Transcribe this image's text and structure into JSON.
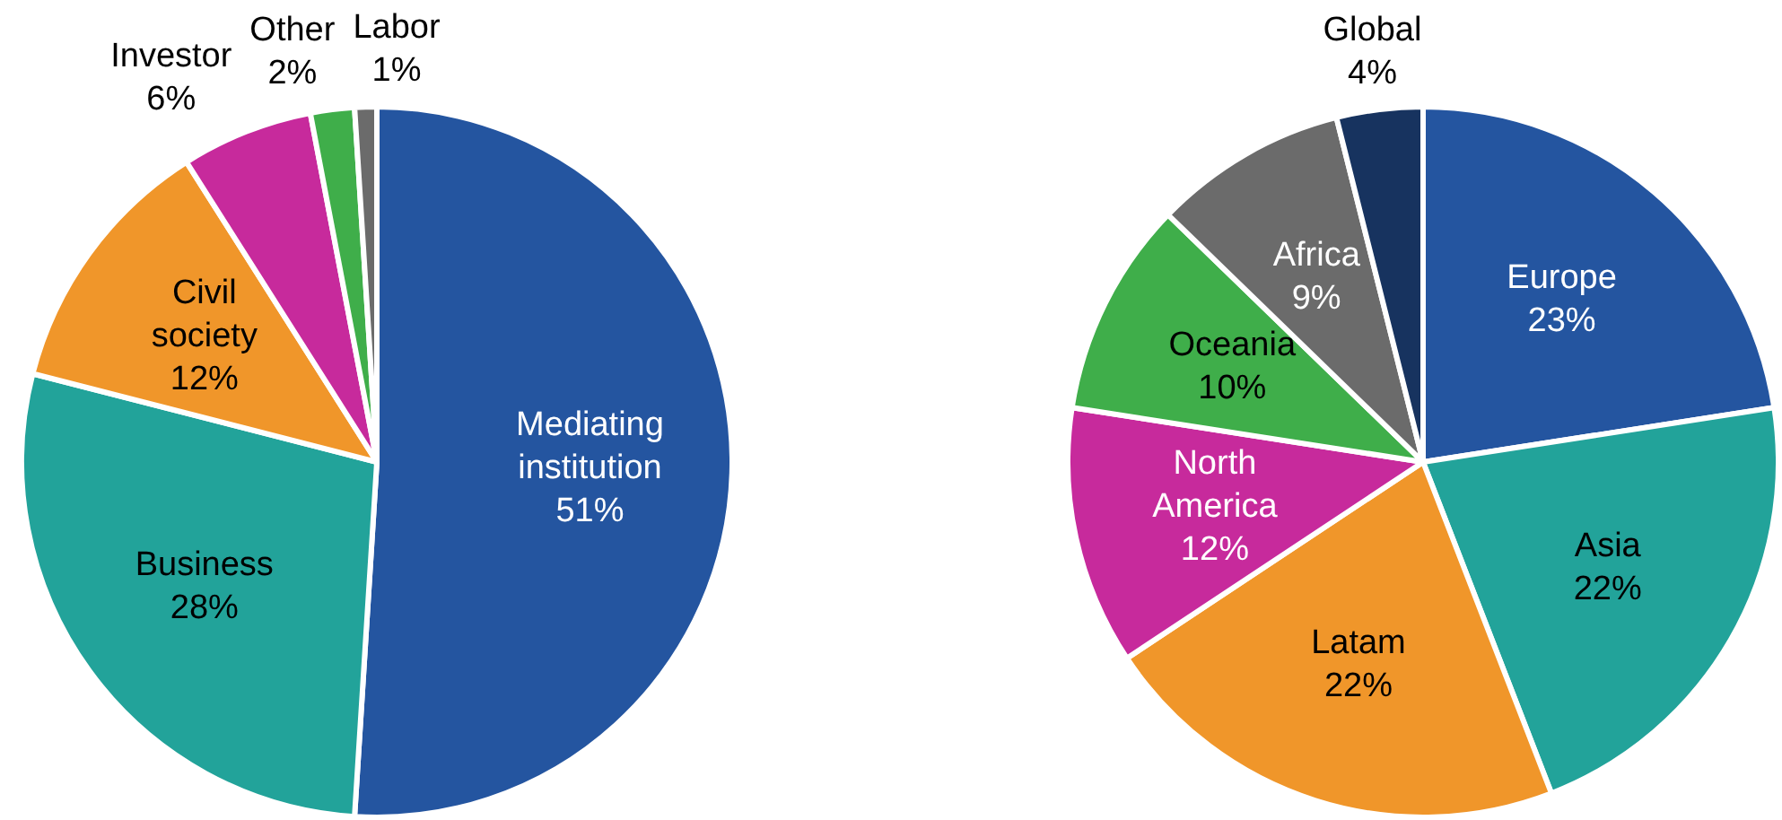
{
  "chart_data": [
    {
      "type": "pie",
      "categories": [
        "Mediating institution",
        "Business",
        "Civil society",
        "Investor",
        "Other",
        "Labor"
      ],
      "values": [
        51,
        28,
        12,
        6,
        2,
        1
      ],
      "value_labels": [
        "51%",
        "28%",
        "12%",
        "6%",
        "2%",
        "1%"
      ],
      "colors": [
        "#2455a0",
        "#22a39a",
        "#f0962a",
        "#c72a9c",
        "#3fae4a",
        "#6b6b6b"
      ],
      "legend": false
    },
    {
      "type": "pie",
      "categories": [
        "Europe",
        "Asia",
        "Latam",
        "North America",
        "Oceania",
        "Africa",
        "Global"
      ],
      "values": [
        23,
        22,
        22,
        12,
        10,
        9,
        4
      ],
      "value_labels": [
        "23%",
        "22%",
        "22%",
        "12%",
        "10%",
        "9%",
        "4%"
      ],
      "colors": [
        "#2455a0",
        "#22a39a",
        "#f0962a",
        "#c72a9c",
        "#3fae4a",
        "#6b6b6b",
        "#17335f"
      ],
      "legend": false
    }
  ]
}
